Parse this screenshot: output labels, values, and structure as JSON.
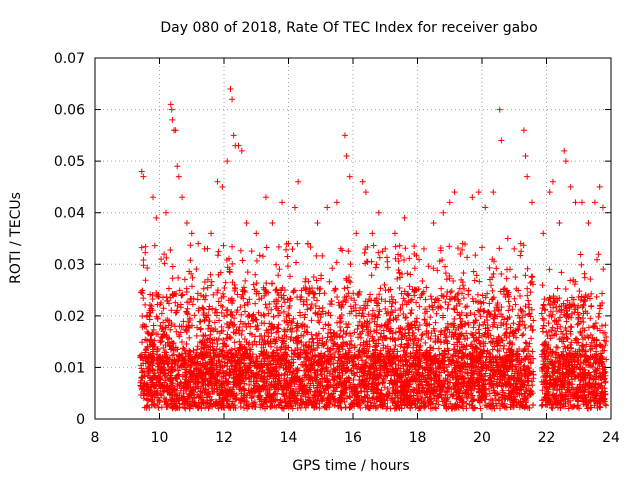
{
  "chart_data": {
    "type": "scatter",
    "title": "Day 080 of 2018, Rate Of TEC Index for receiver gabo",
    "xlabel": "GPS time / hours",
    "ylabel": "ROTI / TECUs",
    "xlim": [
      8,
      24
    ],
    "ylim": [
      0,
      0.07
    ],
    "x_ticks": [
      8,
      10,
      12,
      14,
      16,
      18,
      20,
      22,
      24
    ],
    "y_ticks": [
      0,
      0.01,
      0.02,
      0.03,
      0.04,
      0.05,
      0.06,
      0.07
    ],
    "x_tick_labels": [
      "8",
      "10",
      "12",
      "14",
      "16",
      "18",
      "20",
      "22",
      "24"
    ],
    "y_tick_labels": [
      "0",
      "0.01",
      "0.02",
      "0.03",
      "0.04",
      "0.05",
      "0.06",
      "0.07"
    ],
    "grid": true,
    "marker": "+",
    "series_color": "#ff0000",
    "series": [
      {
        "name": "ROTI",
        "points": [
          [
            9.45,
            0.048
          ],
          [
            9.5,
            0.047
          ],
          [
            9.8,
            0.043
          ],
          [
            9.9,
            0.039
          ],
          [
            10.05,
            0.031
          ],
          [
            10.2,
            0.04
          ],
          [
            10.35,
            0.061
          ],
          [
            10.38,
            0.06
          ],
          [
            10.4,
            0.058
          ],
          [
            10.45,
            0.056
          ],
          [
            10.5,
            0.056
          ],
          [
            10.55,
            0.049
          ],
          [
            10.6,
            0.047
          ],
          [
            10.7,
            0.043
          ],
          [
            10.85,
            0.038
          ],
          [
            11.0,
            0.036
          ],
          [
            11.2,
            0.034
          ],
          [
            11.4,
            0.033
          ],
          [
            11.6,
            0.036
          ],
          [
            11.8,
            0.046
          ],
          [
            11.95,
            0.045
          ],
          [
            12.1,
            0.05
          ],
          [
            12.2,
            0.064
          ],
          [
            12.25,
            0.062
          ],
          [
            12.3,
            0.055
          ],
          [
            12.35,
            0.053
          ],
          [
            12.45,
            0.053
          ],
          [
            12.55,
            0.052
          ],
          [
            12.7,
            0.038
          ],
          [
            13.0,
            0.036
          ],
          [
            13.3,
            0.043
          ],
          [
            13.5,
            0.038
          ],
          [
            13.8,
            0.042
          ],
          [
            14.0,
            0.034
          ],
          [
            14.2,
            0.041
          ],
          [
            14.3,
            0.046
          ],
          [
            14.6,
            0.034
          ],
          [
            14.9,
            0.038
          ],
          [
            15.2,
            0.041
          ],
          [
            15.5,
            0.042
          ],
          [
            15.75,
            0.055
          ],
          [
            15.8,
            0.051
          ],
          [
            15.9,
            0.047
          ],
          [
            16.1,
            0.036
          ],
          [
            16.3,
            0.046
          ],
          [
            16.4,
            0.044
          ],
          [
            16.6,
            0.036
          ],
          [
            16.8,
            0.04
          ],
          [
            17.0,
            0.033
          ],
          [
            17.3,
            0.036
          ],
          [
            17.6,
            0.039
          ],
          [
            17.9,
            0.032
          ],
          [
            18.2,
            0.033
          ],
          [
            18.5,
            0.038
          ],
          [
            18.8,
            0.04
          ],
          [
            19.0,
            0.042
          ],
          [
            19.15,
            0.044
          ],
          [
            19.4,
            0.034
          ],
          [
            19.7,
            0.043
          ],
          [
            19.9,
            0.044
          ],
          [
            20.1,
            0.041
          ],
          [
            20.35,
            0.044
          ],
          [
            20.55,
            0.06
          ],
          [
            20.6,
            0.054
          ],
          [
            20.8,
            0.035
          ],
          [
            21.0,
            0.033
          ],
          [
            21.2,
            0.034
          ],
          [
            21.3,
            0.056
          ],
          [
            21.35,
            0.051
          ],
          [
            21.4,
            0.047
          ],
          [
            21.55,
            0.042
          ],
          [
            21.9,
            0.036
          ],
          [
            22.1,
            0.044
          ],
          [
            22.2,
            0.046
          ],
          [
            22.4,
            0.038
          ],
          [
            22.55,
            0.052
          ],
          [
            22.6,
            0.05
          ],
          [
            22.75,
            0.045
          ],
          [
            22.9,
            0.042
          ],
          [
            23.1,
            0.042
          ],
          [
            23.3,
            0.038
          ],
          [
            23.5,
            0.042
          ],
          [
            23.65,
            0.045
          ],
          [
            23.75,
            0.041
          ]
        ],
        "density_segments": [
          {
            "x_range": [
              9.4,
              21.6
            ],
            "base_range": [
              0.002,
              0.012
            ],
            "upper_envelope": 0.034
          },
          {
            "x_range": [
              21.85,
              23.85
            ],
            "base_range": [
              0.002,
              0.012
            ],
            "upper_envelope": 0.032
          }
        ]
      }
    ]
  }
}
